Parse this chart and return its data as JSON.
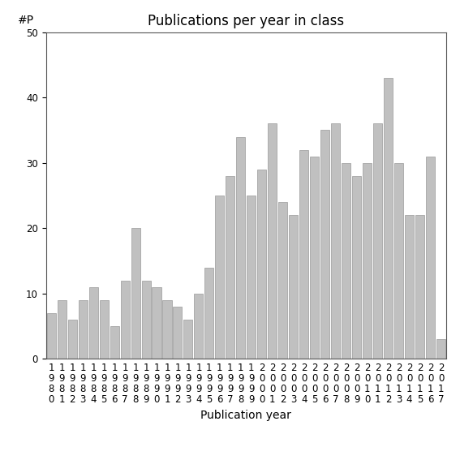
{
  "title": "Publications per year in class",
  "xlabel": "Publication year",
  "ylabel": "#P",
  "years": [
    1980,
    1981,
    1982,
    1983,
    1984,
    1985,
    1986,
    1987,
    1988,
    1989,
    1990,
    1991,
    1992,
    1993,
    1994,
    1995,
    1996,
    1997,
    1998,
    1999,
    2000,
    2001,
    2002,
    2003,
    2004,
    2005,
    2006,
    2007,
    2008,
    2009,
    2010,
    2011,
    2012,
    2013,
    2014,
    2015,
    2016,
    2017
  ],
  "values": [
    7,
    9,
    6,
    9,
    11,
    9,
    5,
    12,
    20,
    12,
    11,
    9,
    8,
    6,
    10,
    14,
    25,
    28,
    34,
    25,
    29,
    36,
    24,
    22,
    32,
    31,
    35,
    36,
    30,
    28,
    30,
    36,
    43,
    30,
    22,
    22,
    31,
    3
  ],
  "bar_color": "#c0c0c0",
  "bar_edgecolor": "#999999",
  "ylim": [
    0,
    50
  ],
  "yticks": [
    0,
    10,
    20,
    30,
    40,
    50
  ],
  "background_color": "#ffffff",
  "title_fontsize": 12,
  "axis_fontsize": 10,
  "tick_fontsize": 8.5
}
